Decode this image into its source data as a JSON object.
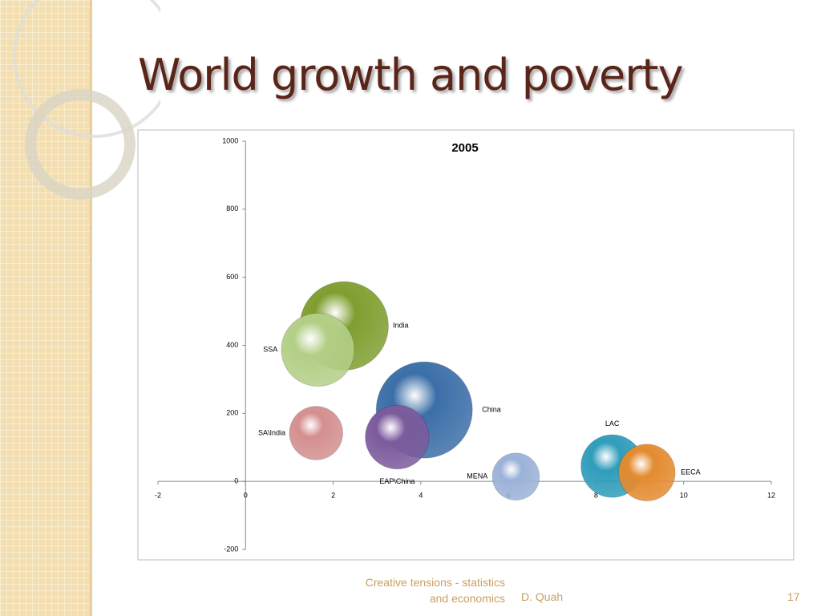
{
  "slide": {
    "title": "World growth and poverty",
    "footer": {
      "source_line1": "Creative tensions - statistics",
      "source_line2": "and economics",
      "author": "D. Quah",
      "page": "17"
    }
  },
  "chart_data": {
    "type": "bubble",
    "title": "2005",
    "points": [
      {
        "name": "India",
        "x": 2.25,
        "y": 457,
        "size": 1100,
        "color": "#7f9e2f"
      },
      {
        "name": "SSA",
        "x": 1.65,
        "y": 387,
        "size": 750,
        "color": "#b3cf86"
      },
      {
        "name": "China",
        "x": 4.08,
        "y": 210,
        "size": 1300,
        "color": "#3b6ea8"
      },
      {
        "name": "SA\\India",
        "x": 1.61,
        "y": 142,
        "size": 400,
        "color": "#d48f8f"
      },
      {
        "name": "EAP\\China",
        "x": 3.46,
        "y": 130,
        "size": 570,
        "color": "#7b5b9c"
      },
      {
        "name": "MENA",
        "x": 6.17,
        "y": 14,
        "size": 310,
        "color": "#9bb2d8"
      },
      {
        "name": "LAC",
        "x": 8.37,
        "y": 45,
        "size": 550,
        "color": "#2f9dbb"
      },
      {
        "name": "EECA",
        "x": 9.16,
        "y": 26,
        "size": 450,
        "color": "#e38b2f"
      }
    ],
    "xlim": [
      -2,
      12
    ],
    "xticks": [
      -2,
      0,
      2,
      4,
      6,
      8,
      10,
      12
    ],
    "ylim": [
      -200,
      1000
    ],
    "yticks": [
      -200,
      0,
      200,
      400,
      600,
      800,
      1000
    ],
    "grid": false
  }
}
